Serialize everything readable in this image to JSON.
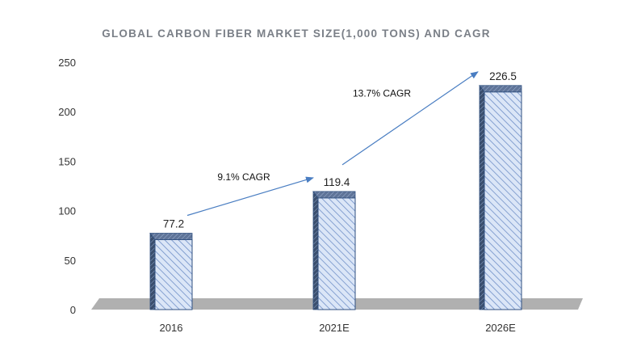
{
  "chart_data": {
    "type": "bar",
    "title": "GLOBAL CARBON FIBER MARKET SIZE(1,000 TONS) AND CAGR",
    "xlabel": "",
    "ylabel": "",
    "categories": [
      "2016",
      "2021E",
      "2026E"
    ],
    "values": [
      77.2,
      119.4,
      226.5
    ],
    "data_labels": [
      "77.2",
      "119.4",
      "226.5"
    ],
    "ylim": [
      0,
      250
    ],
    "yticks": [
      0,
      50,
      100,
      150,
      200,
      250
    ],
    "grid": false,
    "legend": "none",
    "annotations": [
      {
        "text": "9.1% CAGR",
        "from": "2016",
        "to": "2021E"
      },
      {
        "text": "13.7% CAGR",
        "from": "2021E",
        "to": "2026E"
      }
    ],
    "colors": {
      "bar_fill": "#dbe6f7",
      "bar_hatch": "#6f8fc7",
      "bar_edge": "#2f4f7f",
      "bar_side": "#3b4f6e",
      "floor": "#b0b0b0",
      "arrow": "#4a7ec2"
    }
  }
}
